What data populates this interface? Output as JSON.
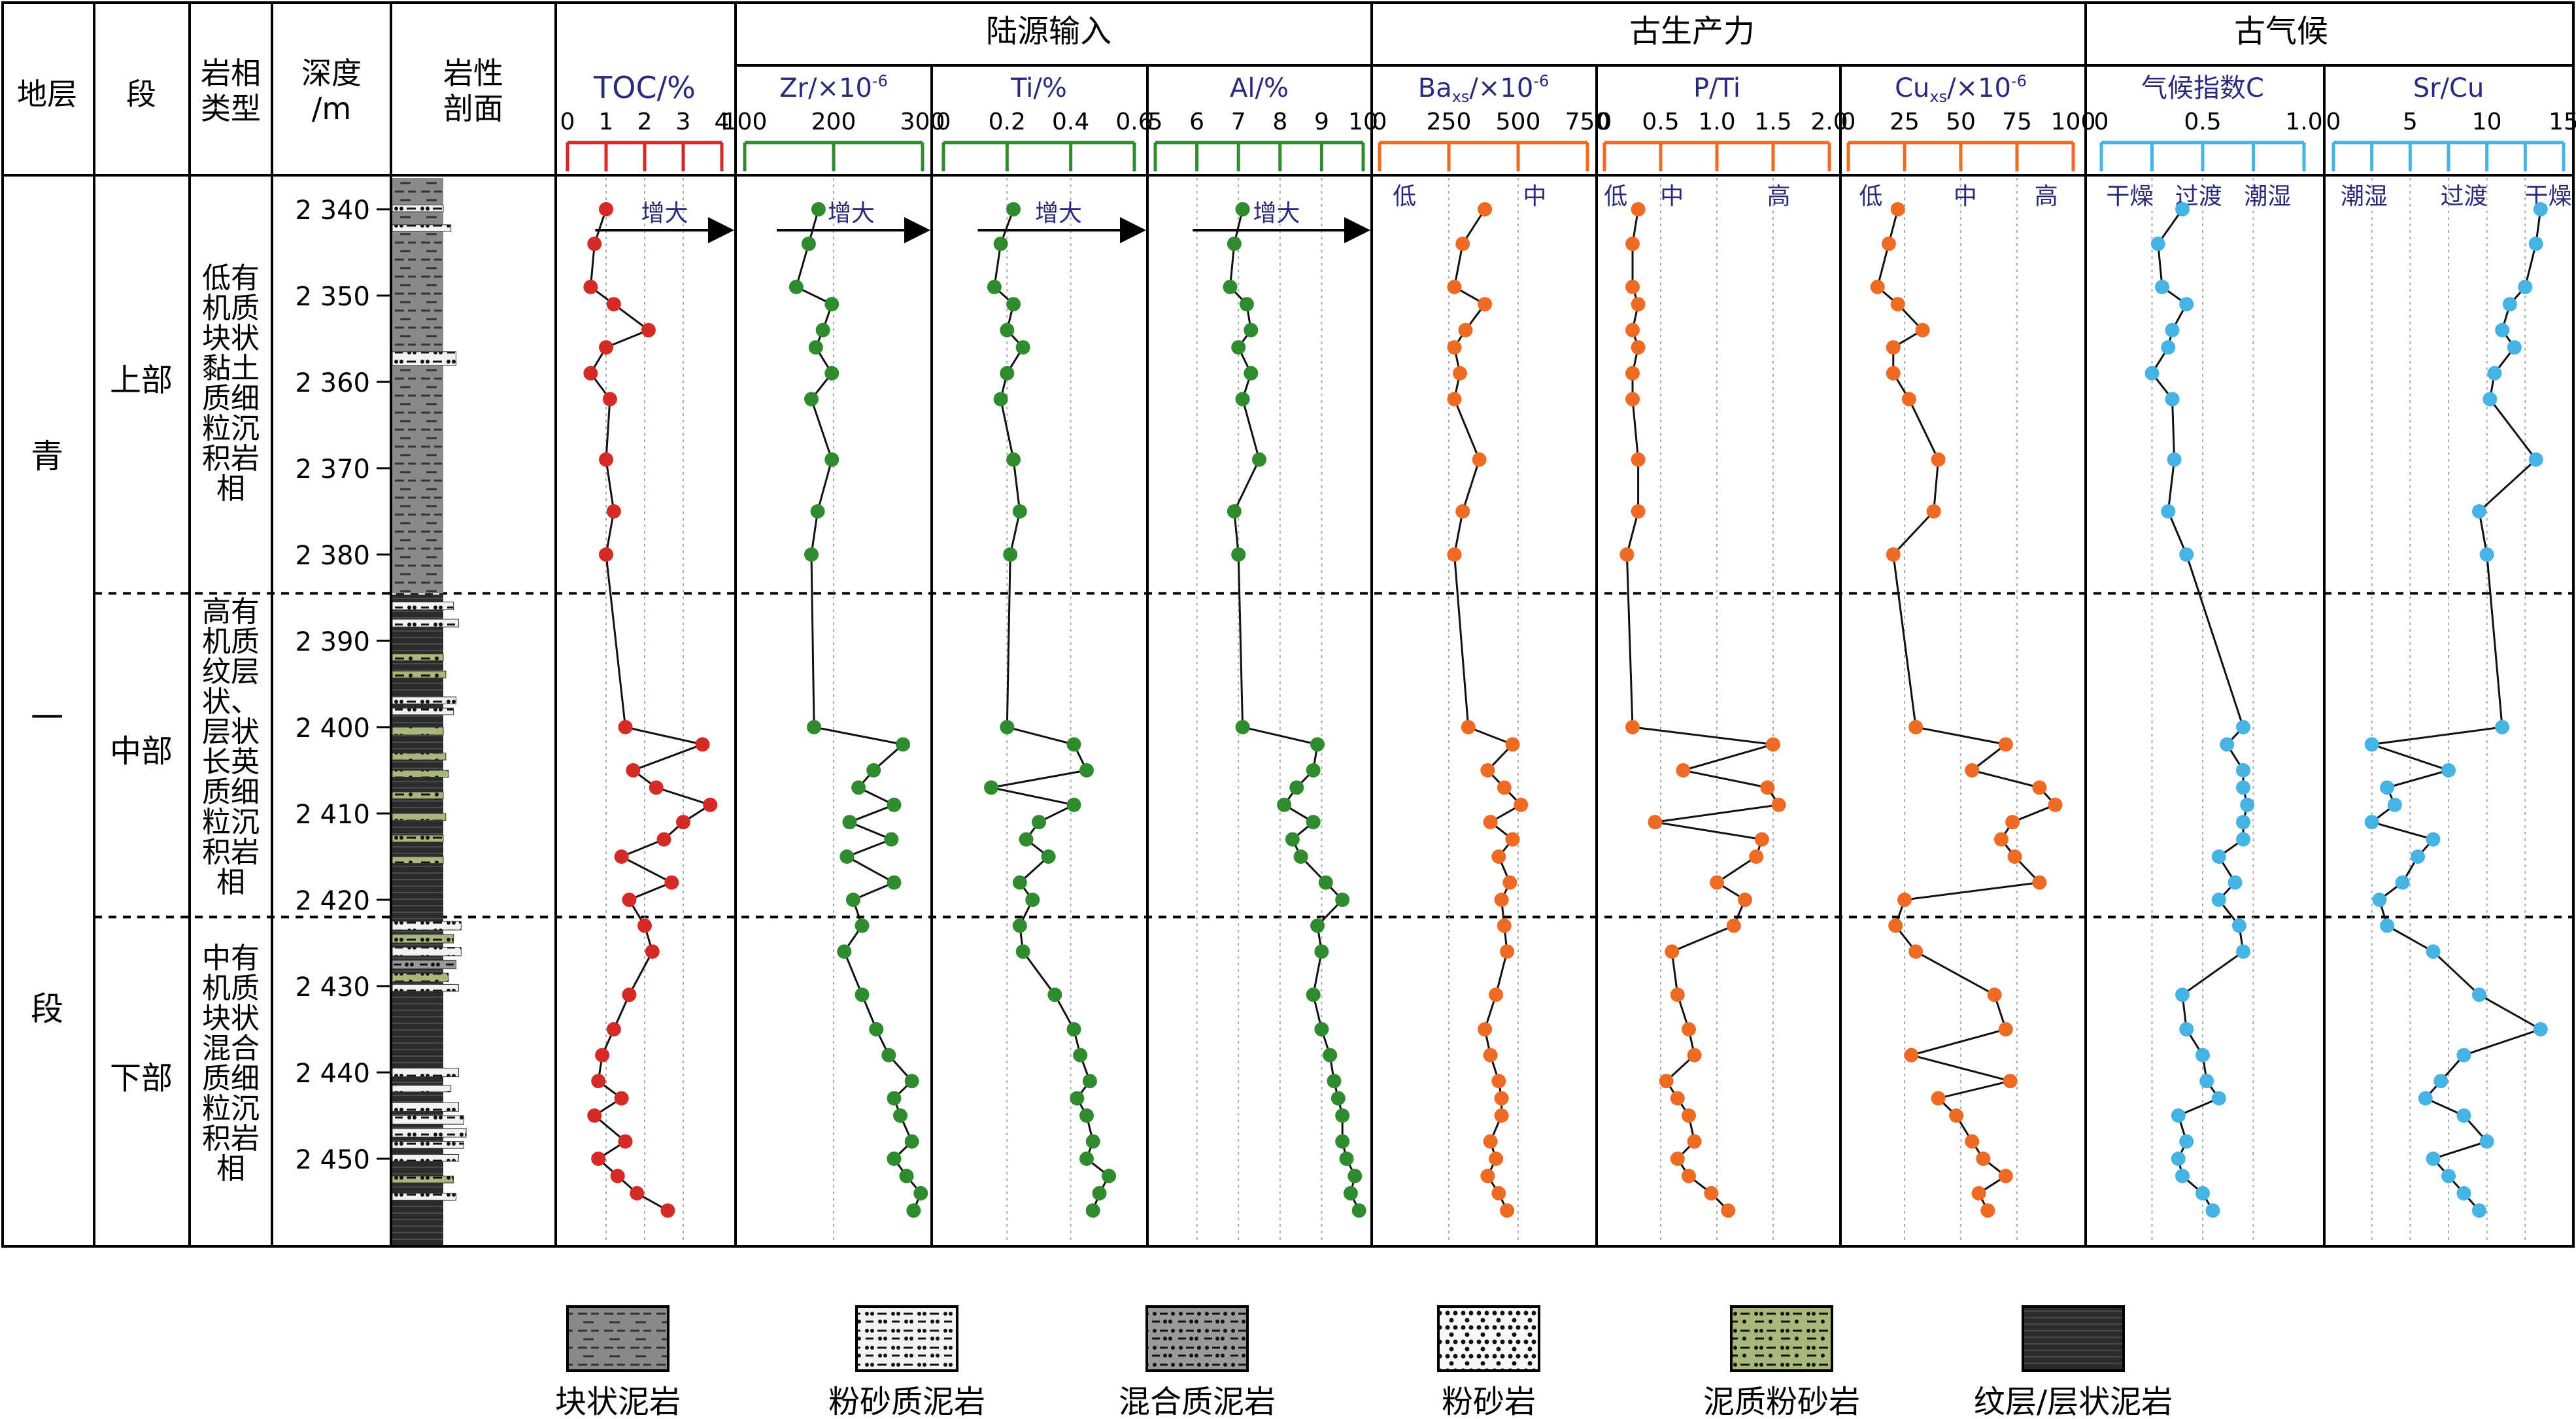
{
  "header": {
    "col_formation": "地层",
    "col_member": "段",
    "col_facies": "岩相\n类型",
    "col_depth": "深度\n/m",
    "col_lith": "岩性\n剖面",
    "group_terrigenous": "陆源输入",
    "group_productivity": "古生产力",
    "group_climate": "古气候"
  },
  "formation_chars": [
    "青",
    "一",
    "段"
  ],
  "members": [
    {
      "label": "上部",
      "facies": "低有\n机质\n块状\n黏土\n质细\n粒沉\n积岩\n相"
    },
    {
      "label": "中部",
      "facies": "高有\n机质\n纹层\n状、\n层状\n长英\n质细\n粒沉\n积岩\n相"
    },
    {
      "label": "下部",
      "facies": "中有\n机质\n块状\n混合\n质细\n粒沉\n积岩\n相"
    }
  ],
  "legend": [
    {
      "label": "块状泥岩",
      "pattern": "massive-mudstone"
    },
    {
      "label": "粉砂质泥岩",
      "pattern": "silty-mudstone"
    },
    {
      "label": "混合质泥岩",
      "pattern": "mixed-mudstone"
    },
    {
      "label": "粉砂岩",
      "pattern": "siltstone"
    },
    {
      "label": "泥质粉砂岩",
      "pattern": "muddy-siltstone"
    },
    {
      "label": "纹层/层状泥岩",
      "pattern": "laminated-mudstone"
    }
  ],
  "colors": {
    "red": "#d52b26",
    "green": "#2e8b2e",
    "orange": "#ef6a23",
    "blue": "#45b3e3"
  },
  "chart_data": {
    "type": "line",
    "depth_label": "深度/m",
    "depth_ticks": [
      "2 340",
      "2 350",
      "2 360",
      "2 370",
      "2 380",
      "2 390",
      "2 400",
      "2 410",
      "2 420",
      "2 430",
      "2 440",
      "2 450"
    ],
    "depth_values": [
      2340,
      2350,
      2360,
      2370,
      2380,
      2390,
      2400,
      2410,
      2420,
      2430,
      2440,
      2450
    ],
    "depth_range": [
      2335,
      2458
    ],
    "member_boundaries": [
      2384.5,
      2422
    ],
    "depths": [
      2340,
      2344,
      2349,
      2351,
      2354,
      2356,
      2359,
      2362,
      2369,
      2375,
      2380,
      2400,
      2402,
      2405,
      2407,
      2409,
      2411,
      2413,
      2415,
      2418,
      2420,
      2423,
      2426,
      2431,
      2435,
      2438,
      2441,
      2443,
      2445,
      2448,
      2450,
      2452,
      2454,
      2456
    ],
    "panels": [
      {
        "name": "TOC",
        "title": "TOC/%",
        "axis_min": 0,
        "axis_max": 4,
        "tick_labels": [
          "0",
          "1",
          "2",
          "3",
          "4"
        ],
        "tick_values": [
          0,
          1,
          2,
          3,
          4
        ],
        "color": "red",
        "annotations": [
          "增大"
        ],
        "values": [
          1.0,
          0.7,
          0.6,
          1.2,
          2.1,
          1.0,
          0.6,
          1.1,
          1.0,
          1.2,
          1.0,
          1.5,
          3.5,
          1.7,
          2.3,
          3.7,
          3.0,
          2.5,
          1.4,
          2.7,
          1.6,
          2.0,
          2.2,
          1.6,
          1.2,
          0.9,
          0.8,
          1.4,
          0.7,
          1.5,
          0.8,
          1.3,
          1.8,
          2.6
        ]
      },
      {
        "name": "Zr",
        "title": "Zr/×10",
        "title_sup": "-6",
        "axis_min": 100,
        "axis_max": 300,
        "tick_labels": [
          "100",
          "200",
          "300"
        ],
        "tick_values": [
          100,
          200,
          300
        ],
        "color": "green",
        "annotations": [
          "增大"
        ],
        "values": [
          183,
          172,
          158,
          198,
          188,
          180,
          198,
          175,
          198,
          182,
          175,
          178,
          278,
          245,
          228,
          268,
          218,
          265,
          215,
          268,
          222,
          232,
          212,
          232,
          248,
          262,
          288,
          268,
          275,
          288,
          268,
          282,
          298,
          290
        ]
      },
      {
        "name": "Ti",
        "title": "Ti/%",
        "axis_min": 0,
        "axis_max": 0.6,
        "tick_labels": [
          "0",
          "0.2",
          "0.4",
          "0.6"
        ],
        "tick_values": [
          0,
          0.2,
          0.4,
          0.6
        ],
        "color": "green",
        "annotations": [
          "增大"
        ],
        "values": [
          0.22,
          0.18,
          0.16,
          0.22,
          0.2,
          0.25,
          0.2,
          0.18,
          0.22,
          0.24,
          0.21,
          0.2,
          0.41,
          0.45,
          0.15,
          0.41,
          0.3,
          0.26,
          0.33,
          0.24,
          0.28,
          0.24,
          0.25,
          0.35,
          0.41,
          0.43,
          0.46,
          0.42,
          0.45,
          0.47,
          0.45,
          0.52,
          0.49,
          0.47
        ]
      },
      {
        "name": "Al",
        "title": "Al/%",
        "axis_min": 5,
        "axis_max": 10,
        "tick_labels": [
          "5",
          "6",
          "7",
          "8",
          "9",
          "10"
        ],
        "tick_values": [
          5,
          6,
          7,
          8,
          9,
          10
        ],
        "color": "green",
        "annotations": [
          "增大"
        ],
        "values": [
          7.1,
          6.9,
          6.8,
          7.2,
          7.3,
          7.0,
          7.3,
          7.1,
          7.5,
          6.9,
          7.0,
          7.1,
          8.9,
          8.8,
          8.4,
          8.1,
          8.8,
          8.3,
          8.5,
          9.1,
          9.5,
          8.9,
          9.0,
          8.8,
          9.0,
          9.2,
          9.3,
          9.4,
          9.5,
          9.5,
          9.6,
          9.8,
          9.7,
          9.9
        ]
      },
      {
        "name": "Ba_xs",
        "title": "Ba",
        "title_sub": "xs",
        "title_suffix": "/×10",
        "title_sup": "-6",
        "axis_min": 0,
        "axis_max": 750,
        "tick_labels": [
          "0",
          "250",
          "500",
          "750"
        ],
        "tick_values": [
          0,
          250,
          500,
          750
        ],
        "color": "orange",
        "level_labels": [
          "低",
          "中"
        ],
        "level_values": [
          90,
          560
        ],
        "values": [
          380,
          300,
          270,
          380,
          310,
          270,
          290,
          270,
          360,
          300,
          270,
          320,
          480,
          390,
          450,
          510,
          400,
          480,
          430,
          470,
          440,
          450,
          460,
          420,
          380,
          400,
          430,
          440,
          440,
          400,
          420,
          390,
          430,
          460
        ]
      },
      {
        "name": "P_Ti",
        "title": "P/Ti",
        "axis_min": 0,
        "axis_max": 2.0,
        "tick_labels": [
          "0",
          "0.5",
          "1.0",
          "1.5",
          "2.0"
        ],
        "tick_values": [
          0,
          0.5,
          1.0,
          1.5,
          2.0
        ],
        "color": "orange",
        "level_labels": [
          "低",
          "中",
          "高"
        ],
        "level_values": [
          0.1,
          0.6,
          1.55
        ],
        "values": [
          0.3,
          0.25,
          0.25,
          0.3,
          0.25,
          0.3,
          0.25,
          0.25,
          0.3,
          0.3,
          0.2,
          0.25,
          1.5,
          0.7,
          1.45,
          1.55,
          0.45,
          1.4,
          1.35,
          1.0,
          1.25,
          1.15,
          0.6,
          0.65,
          0.75,
          0.8,
          0.55,
          0.65,
          0.75,
          0.8,
          0.65,
          0.75,
          0.95,
          1.1
        ]
      },
      {
        "name": "Cu_xs",
        "title": "Cu",
        "title_sub": "xs",
        "title_suffix": "/×10",
        "title_sup": "-6",
        "axis_min": 0,
        "axis_max": 100,
        "tick_labels": [
          "0",
          "25",
          "50",
          "75",
          "100"
        ],
        "tick_values": [
          0,
          25,
          50,
          75,
          100
        ],
        "color": "orange",
        "level_labels": [
          "低",
          "中",
          "高"
        ],
        "level_values": [
          10,
          52,
          88
        ],
        "values": [
          22,
          18,
          13,
          22,
          33,
          20,
          20,
          27,
          40,
          38,
          20,
          30,
          70,
          55,
          85,
          92,
          73,
          68,
          74,
          85,
          25,
          21,
          30,
          65,
          70,
          28,
          72,
          40,
          48,
          55,
          60,
          70,
          58,
          62
        ]
      },
      {
        "name": "C",
        "title": "气候指数C",
        "axis_min": 0,
        "axis_max": 1.0,
        "tick_labels": [
          "0",
          "0.5",
          "1.0"
        ],
        "tick_values": [
          0,
          0.5,
          1.0
        ],
        "color": "blue",
        "level_labels": [
          "干燥",
          "过渡",
          "潮湿"
        ],
        "level_values": [
          0.14,
          0.48,
          0.82
        ],
        "values": [
          0.4,
          0.28,
          0.3,
          0.42,
          0.35,
          0.33,
          0.25,
          0.35,
          0.36,
          0.33,
          0.42,
          0.7,
          0.62,
          0.7,
          0.7,
          0.72,
          0.7,
          0.7,
          0.58,
          0.66,
          0.58,
          0.68,
          0.7,
          0.4,
          0.42,
          0.5,
          0.52,
          0.58,
          0.38,
          0.42,
          0.38,
          0.4,
          0.5,
          0.55
        ]
      },
      {
        "name": "Sr_Cu",
        "title": "Sr/Cu",
        "axis_min": 0,
        "axis_max": 15,
        "tick_labels": [
          "0",
          "5",
          "10",
          "15"
        ],
        "tick_values": [
          0,
          5,
          10,
          15
        ],
        "color": "blue",
        "level_labels": [
          "潮湿",
          "过渡",
          "干燥"
        ],
        "level_values": [
          2.0,
          8.5,
          14.0
        ],
        "values": [
          13.5,
          13.2,
          12.5,
          11.5,
          11.0,
          11.8,
          10.5,
          10.2,
          13.2,
          9.5,
          10.0,
          11.0,
          2.5,
          7.5,
          3.5,
          4.0,
          2.5,
          6.5,
          5.5,
          4.5,
          3.0,
          3.5,
          6.5,
          9.5,
          13.5,
          8.5,
          7.0,
          6.0,
          8.5,
          10.0,
          6.5,
          7.5,
          8.5,
          9.5
        ]
      }
    ]
  }
}
